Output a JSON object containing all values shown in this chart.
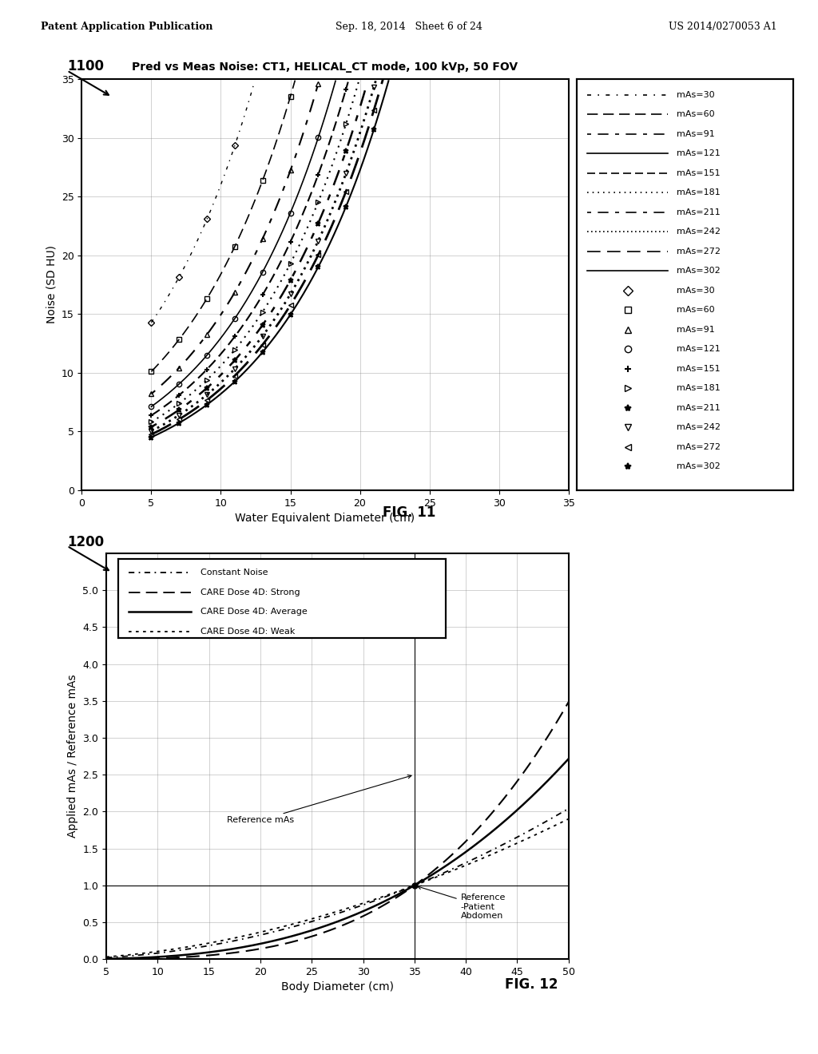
{
  "fig11": {
    "title": "Pred vs Meas Noise: CT1, HELICAL_CT mode, 100 kVp, 50 FOV",
    "xlabel": "Water Equivalent Diameter (cm)",
    "ylabel": "Noise (SD HU)",
    "xlim": [
      0,
      35
    ],
    "ylim": [
      0,
      35
    ],
    "xticks": [
      0,
      5,
      10,
      15,
      20,
      25,
      30,
      35
    ],
    "yticks": [
      0,
      5,
      10,
      15,
      20,
      25,
      30,
      35
    ]
  },
  "fig12": {
    "xlabel": "Body Diameter (cm)",
    "ylabel": "Applied mAs / Reference mAs",
    "xlim": [
      5,
      50
    ],
    "ylim": [
      0,
      5.5
    ],
    "xticks": [
      5,
      10,
      15,
      20,
      25,
      30,
      35,
      40,
      45,
      50
    ],
    "yticks": [
      0,
      0.5,
      1,
      1.5,
      2,
      2.5,
      3,
      3.5,
      4,
      4.5,
      5
    ]
  },
  "header": {
    "left": "Patent Application Publication",
    "center": "Sep. 18, 2014   Sheet 6 of 24",
    "right": "US 2014/0270053 A1"
  },
  "background_color": "#ffffff"
}
